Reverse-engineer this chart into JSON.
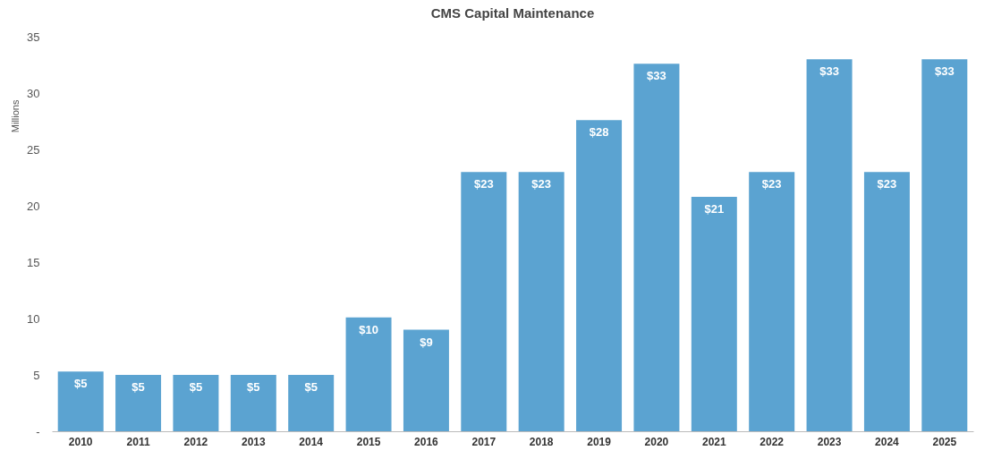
{
  "chart_data": {
    "type": "bar",
    "title": "CMS Capital Maintenance",
    "ylabel": "Millions",
    "categories": [
      "2010",
      "2011",
      "2012",
      "2013",
      "2014",
      "2015",
      "2016",
      "2017",
      "2018",
      "2019",
      "2020",
      "2021",
      "2022",
      "2023",
      "2024",
      "2025"
    ],
    "values": [
      5.3,
      5.0,
      5.0,
      5.0,
      5.0,
      10.1,
      9.0,
      23.0,
      23.0,
      27.6,
      32.6,
      20.8,
      23.0,
      33.0,
      23.0,
      33.0
    ],
    "value_labels": [
      "$5",
      "$5",
      "$5",
      "$5",
      "$5",
      "$10",
      "$9",
      "$23",
      "$23",
      "$28",
      "$33",
      "$21",
      "$23",
      "$33",
      "$23",
      "$33"
    ],
    "color": "#5ba3d1",
    "ylim": [
      0,
      35
    ],
    "yticks": [
      {
        "value": 0,
        "label": "-"
      },
      5,
      10,
      15,
      20,
      25,
      30,
      35
    ],
    "grid": false
  }
}
